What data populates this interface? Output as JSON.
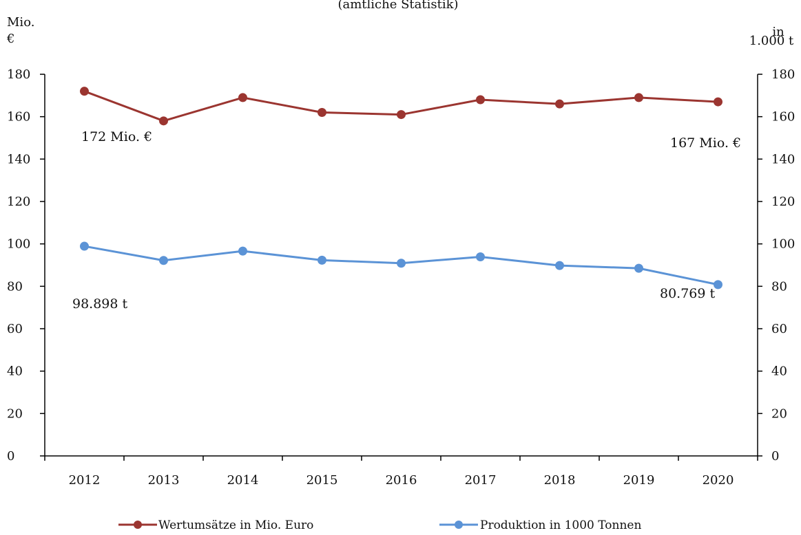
{
  "chart_data": {
    "type": "line",
    "title": "(amtliche Statistik)",
    "categories": [
      "2012",
      "2013",
      "2014",
      "2015",
      "2016",
      "2017",
      "2018",
      "2019",
      "2020"
    ],
    "y_left": {
      "label_line1": "Mio.",
      "label_line2": "€",
      "range": [
        0,
        180
      ],
      "ticks": [
        0,
        20,
        40,
        60,
        80,
        100,
        120,
        140,
        160,
        180
      ]
    },
    "y_right": {
      "label_line1": "in",
      "label_line2": "1.000 t",
      "range": [
        0,
        180
      ],
      "ticks": [
        0,
        20,
        40,
        60,
        80,
        100,
        120,
        140,
        160,
        180
      ]
    },
    "series": [
      {
        "name": "Wertumsätze in Mio. Euro",
        "color": "#9b3530",
        "values": [
          172,
          158,
          169,
          162,
          161,
          168,
          166,
          169,
          167
        ]
      },
      {
        "name": "Produktion in 1000 Tonnen",
        "color": "#5b93d6",
        "values": [
          98.9,
          92.2,
          96.6,
          92.3,
          90.9,
          93.9,
          89.8,
          88.5,
          80.8
        ]
      }
    ],
    "annotations": [
      "172 Mio. €",
      "167 Mio. €",
      "98.898 t",
      "80.769 t"
    ],
    "legend_position": "bottom",
    "grid": false
  }
}
